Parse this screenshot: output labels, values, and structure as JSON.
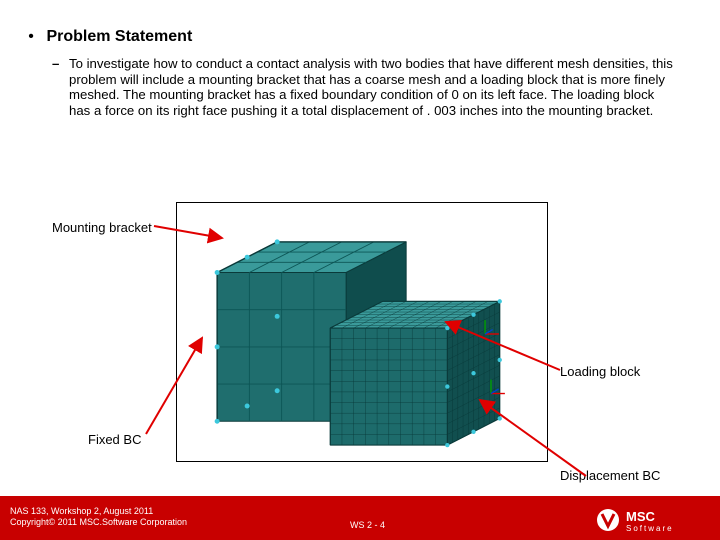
{
  "heading": {
    "bullet": "•",
    "title": "Problem Statement"
  },
  "body": {
    "dash": "–",
    "text": "To investigate how to conduct a contact analysis with two bodies that have different mesh densities, this problem will include a mounting bracket that has a coarse mesh and a loading block that is more finely meshed.  The mounting bracket has a fixed boundary condition of 0 on its left face.  The loading block has a force on its right face pushing it a total displacement of . 003 inches into the mounting bracket."
  },
  "annotations": {
    "mounting_bracket": "Mounting bracket",
    "loading_block": "Loading block",
    "fixed_bc": "Fixed BC",
    "displacement_bc": "Displacement BC"
  },
  "footer": {
    "line1": "NAS 133, Workshop 2, August 2011",
    "line2": "Copyright© 2011 MSC.Software Corporation",
    "page": "WS 2 - 4",
    "logo_text": "MSC",
    "logo_sub": "Software"
  },
  "figure": {
    "background": "#ffffff",
    "bracket": {
      "face_front_fill": "#1f6e6e",
      "face_top_fill": "#3a9a9a",
      "face_side_fill": "#0f4d4d",
      "edge_color": "#0a3a3a",
      "grid_color": "#0c5555",
      "rows": 4,
      "cols": 4,
      "depth_divs": 3
    },
    "block": {
      "face_front_fill": "#1d6b6b",
      "face_top_fill": "#3a9a9a",
      "face_side_fill": "#114f4f",
      "edge_color": "#0a3a3a",
      "grid_color": "#083838",
      "rows": 11,
      "cols": 10,
      "depth_divs": 10
    },
    "bc_marker_color": "#3cc8dc",
    "axis_colors": {
      "x": "#e00000",
      "y": "#00a000",
      "z": "#0040d0"
    },
    "arrow_color": "#e00000",
    "frame_color": "#000000"
  }
}
